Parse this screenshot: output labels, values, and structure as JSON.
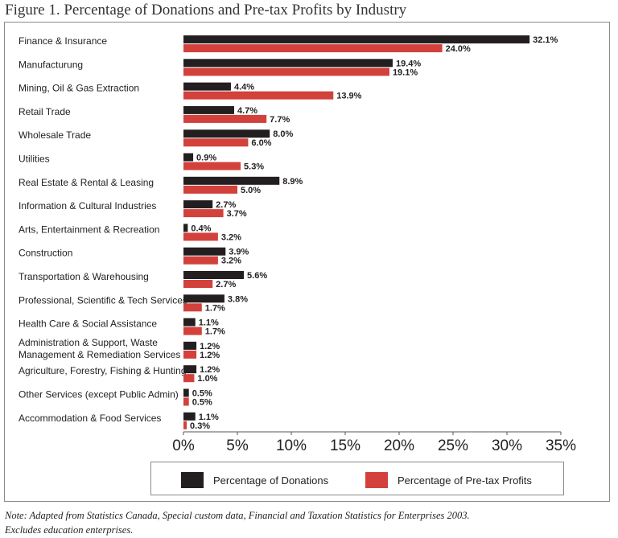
{
  "figure_title": "Figure 1. Percentage of Donations and Pre-tax Profits by Industry",
  "note": {
    "line1": "Note: Adapted from Statistics Canada, Special custom data, Financial and Taxation Statistics for Enterprises 2003.",
    "line2": "Excludes education enterprises."
  },
  "colors": {
    "donations": "#231f20",
    "profits": "#d2413c"
  },
  "chart_data": {
    "type": "bar",
    "orientation": "horizontal",
    "title": "Figure 1. Percentage of Donations and Pre-tax Profits by Industry",
    "categories": [
      "Finance & Insurance",
      "Manufacturung",
      "Mining, Oil & Gas Extraction",
      "Retail Trade",
      "Wholesale Trade",
      "Utilities",
      "Real Estate & Rental & Leasing",
      "Information & Cultural Industries",
      "Arts, Entertainment & Recreation",
      "Construction",
      "Transportation & Warehousing",
      "Professional, Scientific & Tech Services",
      "Health Care & Social Assistance",
      "Administration & Support, Waste\nManagement & Remediation Services",
      "Agriculture, Forestry, Fishing & Hunting",
      "Other Services (except Public Admin)",
      "Accommodation & Food Services"
    ],
    "series": [
      {
        "name": "Percentage of Donations",
        "values": [
          32.1,
          19.4,
          4.4,
          4.7,
          8.0,
          0.9,
          8.9,
          2.7,
          0.4,
          3.9,
          5.6,
          3.8,
          1.1,
          1.2,
          1.2,
          0.5,
          1.1
        ],
        "labels": [
          "32.1%",
          "19.4%",
          "4.4%",
          "4.7%",
          "8.0%",
          "0.9%",
          "8.9%",
          "2.7%",
          "0.4%",
          "3.9%",
          "5.6%",
          "3.8%",
          "1.1%",
          "1.2%",
          "1.2%",
          "0.5%",
          "1.1%"
        ]
      },
      {
        "name": "Percentage of Pre-tax Profits",
        "values": [
          24.0,
          19.1,
          13.9,
          7.7,
          6.0,
          5.3,
          5.0,
          3.7,
          3.2,
          3.2,
          2.7,
          1.7,
          1.7,
          1.2,
          1.0,
          0.5,
          0.3
        ],
        "labels": [
          "24.0%",
          "19.1%",
          "13.9%",
          "7.7%",
          "6.0%",
          "5.3%",
          "5.0%",
          "3.7%",
          "3.2%",
          "3.2%",
          "2.7%",
          "1.7%",
          "1.7%",
          "1.2%",
          "1.0%",
          "0.5%",
          "0.3%"
        ]
      }
    ],
    "xlim": [
      0,
      35
    ],
    "xticks": [
      0,
      5,
      10,
      15,
      20,
      25,
      30,
      35
    ],
    "xtick_labels": [
      "0%",
      "5%",
      "10%",
      "15%",
      "20%",
      "25%",
      "30%",
      "35%"
    ],
    "grid": false,
    "legend_position": "bottom"
  }
}
